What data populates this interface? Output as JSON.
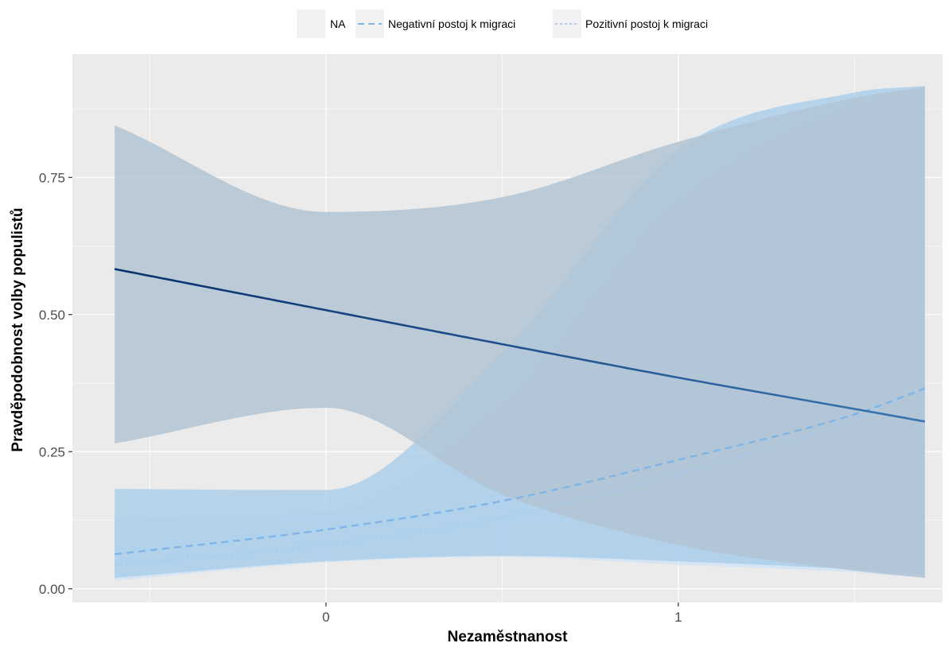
{
  "chart_data": {
    "type": "line",
    "xlabel": "Nezaměstnanost",
    "ylabel": "Pravděpodobnost volby populistů",
    "xlim": [
      -0.72,
      1.75
    ],
    "ylim": [
      -0.025,
      0.975
    ],
    "x_ticks": [
      0,
      1
    ],
    "x_tick_labels": [
      "0",
      "1"
    ],
    "x_minor_ticks": [
      -0.5,
      0.5,
      1.5
    ],
    "y_ticks": [
      0,
      0.25,
      0.5,
      0.75
    ],
    "y_tick_labels": [
      "0.00",
      "0.25",
      "0.50",
      "0.75"
    ],
    "y_minor_ticks": [
      0.125,
      0.375,
      0.625,
      0.875
    ],
    "grid": true,
    "legend_position": "top",
    "colors": {
      "panel": "#ebebeb",
      "grid": "#ffffff",
      "line_na_start": "#08306b",
      "line_na_end": "#3a75b0",
      "line_neg": "#7fb5e6",
      "line_pos": "#a8cdf0",
      "ribbon_na": "#b2c4d4",
      "ribbon_neg": "#a6cbea",
      "ribbon_pos": "#cde3f6"
    },
    "series": [
      {
        "name": "NA",
        "line": "solid",
        "x": [
          -0.6,
          0.0,
          0.5,
          1.0,
          1.5,
          1.7
        ],
        "y": [
          0.583,
          0.508,
          0.446,
          0.385,
          0.328,
          0.305
        ],
        "ci_lower": [
          0.265,
          0.33,
          0.172,
          0.08,
          0.033,
          0.02
        ],
        "ci_upper": [
          0.845,
          0.687,
          0.714,
          0.815,
          0.895,
          0.915
        ]
      },
      {
        "name": "Negativní postoj k migraci",
        "line": "dashed",
        "x": [
          -0.6,
          0.0,
          0.5,
          1.0,
          1.5,
          1.7
        ],
        "y": [
          0.063,
          0.108,
          0.16,
          0.235,
          0.318,
          0.365
        ],
        "ci_lower": [
          0.02,
          0.05,
          0.06,
          0.05,
          0.035,
          0.025
        ],
        "ci_upper": [
          0.182,
          0.18,
          0.43,
          0.8,
          0.905,
          0.917
        ]
      },
      {
        "name": "Pozitivní postoj k migraci",
        "line": "dotted",
        "x": [
          -0.6,
          0.0,
          0.5,
          1.0,
          1.5,
          1.7
        ],
        "y": [
          0.043,
          0.081,
          0.13,
          0.21,
          0.31,
          0.37
        ],
        "ci_lower": [
          0.015,
          0.048,
          0.058,
          0.044,
          0.03,
          0.02
        ],
        "ci_upper": [
          0.128,
          0.14,
          0.33,
          0.7,
          0.88,
          0.915
        ]
      }
    ]
  }
}
